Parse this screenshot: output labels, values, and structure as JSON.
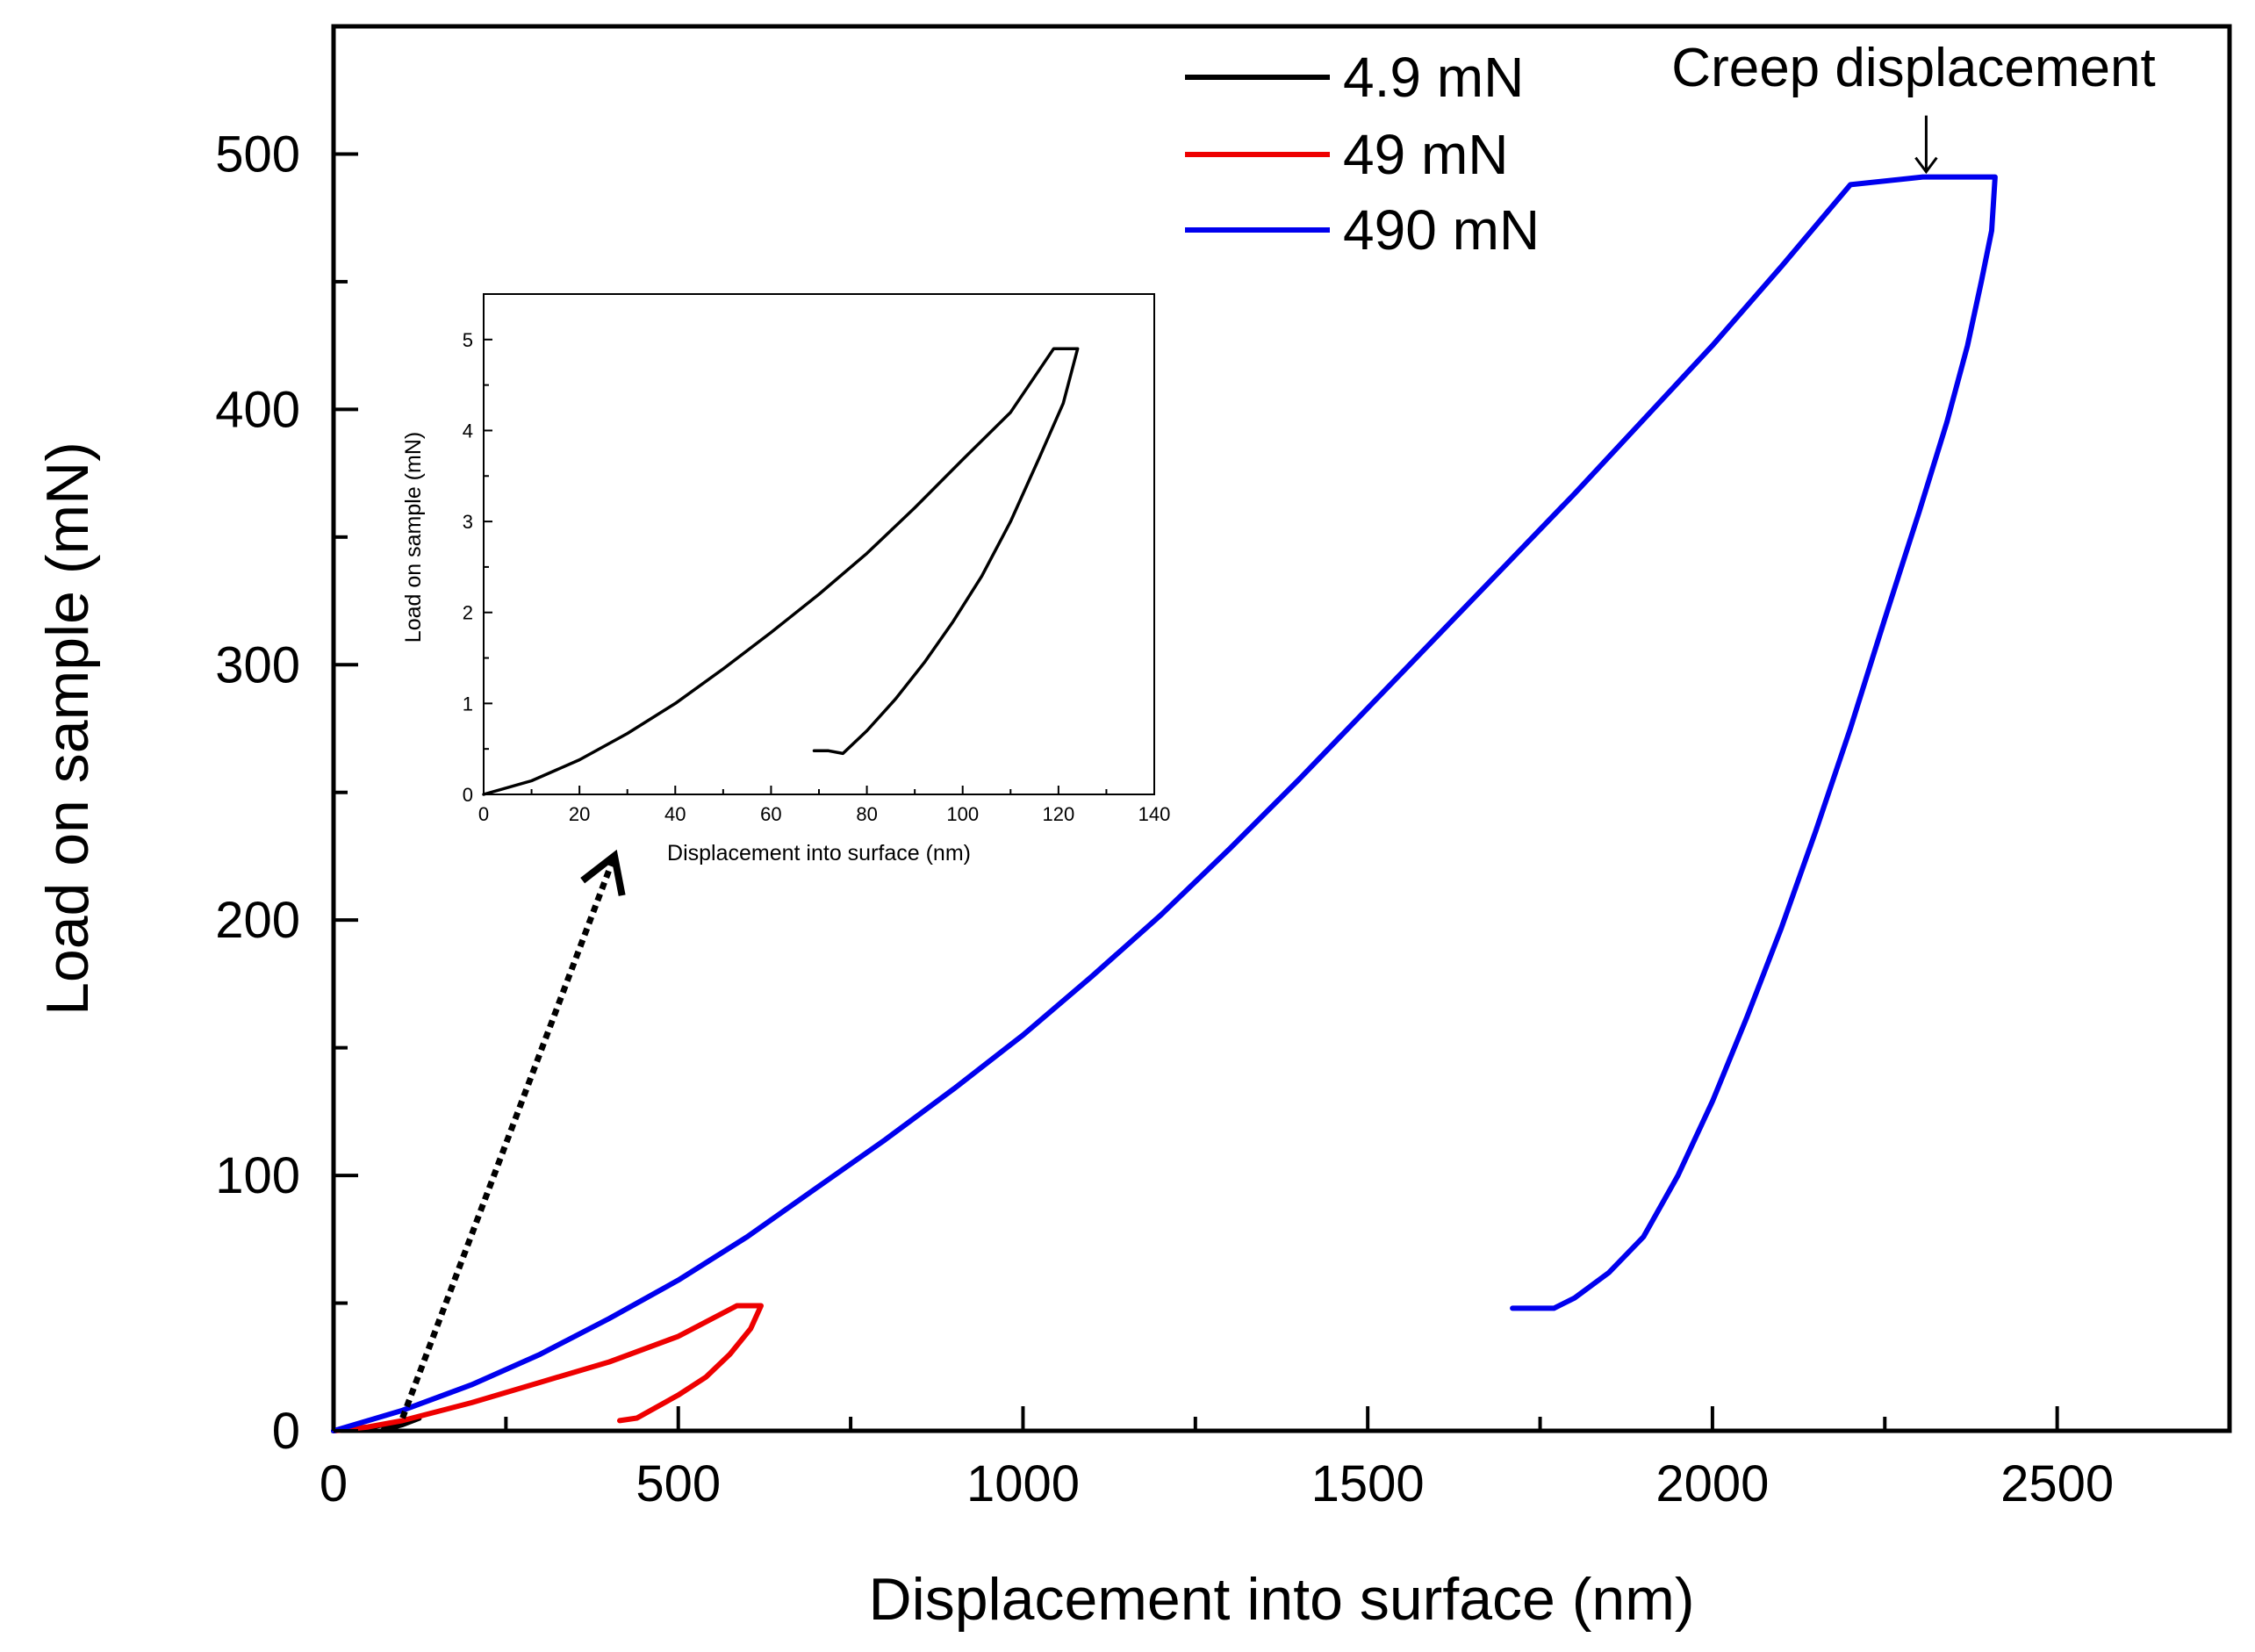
{
  "chart_data": [
    {
      "type": "line",
      "role": "main",
      "title": "",
      "xlabel": "Displacement into surface (nm)",
      "ylabel": "Load on sample (mN)",
      "xlim": [
        0,
        2750
      ],
      "ylim": [
        0,
        550
      ],
      "xticks": [
        0,
        500,
        1000,
        1500,
        2000,
        2500
      ],
      "yticks": [
        0,
        100,
        200,
        300,
        400,
        500
      ],
      "legend_position": "top-center",
      "series": [
        {
          "name": "4.9 mN",
          "color": "#000000",
          "x": [
            0,
            30,
            60,
            90,
            118,
            124,
            100,
            80,
            72
          ],
          "y": [
            0,
            0.6,
            1.8,
            3.3,
            4.9,
            4.9,
            2.4,
            1.0,
            0.4
          ]
        },
        {
          "name": "49 mN",
          "color": "#ee0000",
          "x": [
            0,
            50,
            100,
            200,
            300,
            400,
            500,
            585,
            620,
            605,
            575,
            540,
            500,
            460,
            440,
            415
          ],
          "y": [
            0,
            1.5,
            4,
            11,
            19,
            27,
            37,
            49,
            49,
            40,
            30,
            21,
            14,
            8,
            5,
            4
          ]
        },
        {
          "name": "490 mN",
          "color": "#0000ee",
          "x": [
            0,
            100,
            200,
            300,
            400,
            500,
            600,
            700,
            800,
            900,
            1000,
            1100,
            1200,
            1300,
            1400,
            1500,
            1600,
            1700,
            1800,
            1900,
            2000,
            2100,
            2200,
            2305,
            2410,
            2405,
            2390,
            2370,
            2340,
            2300,
            2250,
            2200,
            2150,
            2100,
            2050,
            2000,
            1950,
            1900,
            1850,
            1800,
            1770,
            1710
          ],
          "y": [
            0,
            8,
            18,
            30,
            44,
            59,
            76,
            95,
            114,
            134,
            155,
            178,
            202,
            228,
            255,
            283,
            311,
            339,
            367,
            396,
            425,
            456,
            488,
            491,
            491,
            470,
            450,
            425,
            395,
            360,
            318,
            275,
            235,
            197,
            162,
            129,
            100,
            76,
            62,
            52,
            48,
            48
          ]
        }
      ],
      "annotations": [
        {
          "text": "Creep displacement",
          "points_to": {
            "x": 2310,
            "y": 491
          }
        },
        {
          "text": "",
          "kind": "dotted-arrow",
          "from": {
            "x": 100,
            "y": 5
          },
          "to": "inset"
        }
      ]
    },
    {
      "type": "line",
      "role": "inset",
      "title": "",
      "xlabel": "Displacement into surface (nm)",
      "ylabel": "Load on sample (mN)",
      "xlim": [
        0,
        140
      ],
      "ylim": [
        0,
        5.5
      ],
      "xticks": [
        0,
        20,
        40,
        60,
        80,
        100,
        120,
        140
      ],
      "yticks": [
        0,
        1,
        2,
        3,
        4,
        5
      ],
      "series": [
        {
          "name": "4.9 mN",
          "color": "#000000",
          "x": [
            0,
            10,
            20,
            30,
            40,
            50,
            60,
            70,
            80,
            90,
            100,
            110,
            119,
            124,
            121,
            116,
            110,
            104,
            98,
            92,
            86,
            80,
            75,
            72,
            69
          ],
          "y": [
            0,
            0.15,
            0.38,
            0.67,
            1.0,
            1.38,
            1.78,
            2.2,
            2.65,
            3.15,
            3.68,
            4.2,
            4.9,
            4.9,
            4.3,
            3.7,
            3.0,
            2.4,
            1.9,
            1.45,
            1.05,
            0.7,
            0.45,
            0.48,
            0.48
          ]
        }
      ]
    }
  ]
}
